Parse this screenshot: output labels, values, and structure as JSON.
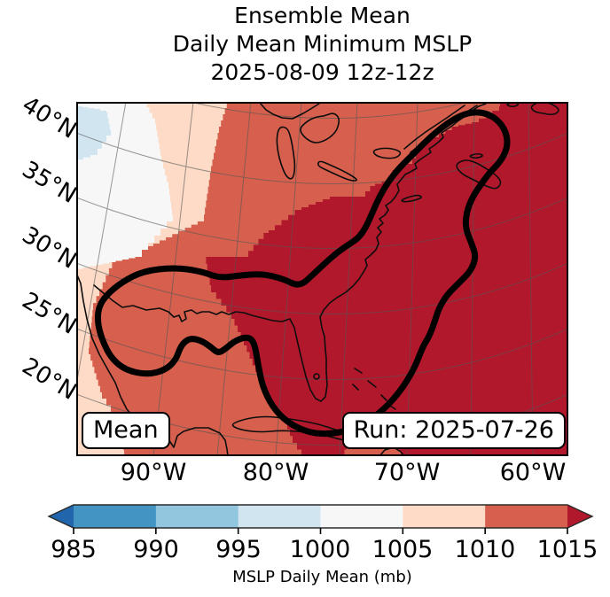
{
  "title": {
    "line1": "Ensemble Mean",
    "line2": "Daily Mean Minimum MSLP",
    "line3": "2025-08-09 12z-12z"
  },
  "map": {
    "lat_labels": [
      "40°N",
      "35°N",
      "30°N",
      "25°N",
      "20°N"
    ],
    "lon_labels": [
      "90°W",
      "80°W",
      "70°W",
      "60°W"
    ],
    "mean_label": "Mean",
    "run_label": "Run: 2025-07-26"
  },
  "colorbar": {
    "ticks": [
      "985",
      "990",
      "995",
      "1000",
      "1005",
      "1010",
      "1015"
    ],
    "label": "MSLP Daily Mean (mb)",
    "segment_colors": [
      "#4393c3",
      "#92c5de",
      "#d1e5f0",
      "#f7f7f7",
      "#fddbc7",
      "#d6604d"
    ],
    "under_color": "#2166ac",
    "over_color": "#b2182b",
    "outline_color": "#2b2b2b"
  },
  "colors": {
    "region_blue": "#d1e5f0",
    "region_white": "#f7f7f7",
    "region_peach": "#fddbc7",
    "region_salmon": "#d6604d",
    "region_darkred": "#b2182b",
    "coastline": "#0d0d0d",
    "gridline": "#555555",
    "contour": "#000000",
    "frame": "#000000"
  },
  "chart_data": {
    "type": "heatmap",
    "title": "Ensemble Mean Daily Mean Minimum MSLP 2025-08-09 12z-12z",
    "xlabel": "",
    "ylabel": "",
    "x_ticks": [
      "90°W",
      "80°W",
      "70°W",
      "60°W"
    ],
    "y_ticks": [
      "40°N",
      "35°N",
      "30°N",
      "25°N",
      "20°N"
    ],
    "colorbar": {
      "label": "MSLP Daily Mean (mb)",
      "ticks": [
        985,
        990,
        995,
        1000,
        1005,
        1010,
        1015
      ],
      "extend": "both",
      "segment_colors": [
        "#4393c3",
        "#92c5de",
        "#d1e5f0",
        "#f7f7f7",
        "#fddbc7",
        "#d6604d"
      ],
      "under_color": "#2166ac",
      "over_color": "#b2182b"
    },
    "annotations": [
      "Mean",
      "Run: 2025-07-26"
    ],
    "regions": [
      {
        "level_mb": "995-1000",
        "color": "#d1e5f0",
        "location": "far northwest corner patch"
      },
      {
        "level_mb": "1000-1005",
        "color": "#f7f7f7",
        "location": "northwest corner wedge"
      },
      {
        "level_mb": "1005-1010",
        "color": "#fddbc7",
        "location": "band along western edge"
      },
      {
        "level_mb": "1010-1015",
        "color": "#d6604d",
        "location": "diagonal band over central US, western Gulf, Yucatan/Cuba south"
      },
      {
        "level_mb": ">1015",
        "color": "#b2182b",
        "location": "western Atlantic, US East Coast, eastern Gulf of Mexico, Florida"
      }
    ],
    "overlay_contour": "thick black closed contour: lobe over western Gulf coast, lobe around Florida/Cuba, corridor running northeast along the East Coast to a loop around Nova Scotia",
    "grid": true,
    "legend": false
  }
}
